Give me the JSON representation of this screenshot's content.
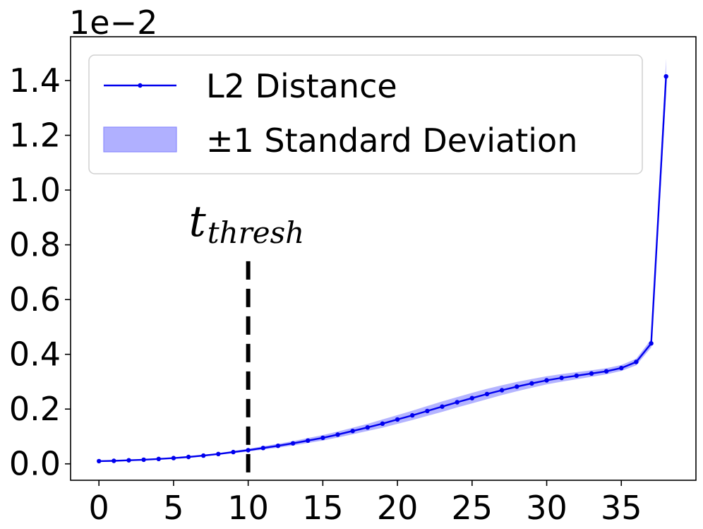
{
  "chart_data": {
    "type": "line",
    "title": "",
    "xlabel": "",
    "ylabel": "",
    "y_offset_label": "1e−2",
    "xlim": [
      -1.9,
      40
    ],
    "ylim": [
      -0.06,
      1.56
    ],
    "x_ticks": [
      0,
      5,
      10,
      15,
      20,
      25,
      30,
      35
    ],
    "y_ticks": [
      0.0,
      0.2,
      0.4,
      0.6,
      0.8,
      1.0,
      1.2,
      1.4
    ],
    "y_tick_labels": [
      "0.0",
      "0.2",
      "0.4",
      "0.6",
      "0.8",
      "1.0",
      "1.2",
      "1.4"
    ],
    "grid": false,
    "legend": {
      "placement": "upper-left",
      "entries": [
        "L2 Distance",
        "±1 Standard Deviation"
      ]
    },
    "series": [
      {
        "name": "L2 Distance",
        "color": "#0000ee",
        "x": [
          0,
          1,
          2,
          3,
          4,
          5,
          6,
          7,
          8,
          9,
          10,
          11,
          12,
          13,
          14,
          15,
          16,
          17,
          18,
          19,
          20,
          21,
          22,
          23,
          24,
          25,
          26,
          27,
          28,
          29,
          30,
          31,
          32,
          33,
          34,
          35,
          36,
          37,
          38
        ],
        "y": [
          0.01,
          0.011,
          0.013,
          0.015,
          0.018,
          0.021,
          0.025,
          0.03,
          0.036,
          0.043,
          0.05,
          0.058,
          0.066,
          0.075,
          0.085,
          0.095,
          0.107,
          0.12,
          0.133,
          0.147,
          0.162,
          0.177,
          0.193,
          0.209,
          0.225,
          0.24,
          0.255,
          0.269,
          0.282,
          0.294,
          0.305,
          0.314,
          0.322,
          0.33,
          0.338,
          0.35,
          0.372,
          0.44,
          1.415
        ],
        "std": [
          0.001,
          0.001,
          0.001,
          0.001,
          0.002,
          0.002,
          0.002,
          0.003,
          0.003,
          0.004,
          0.005,
          0.006,
          0.007,
          0.008,
          0.009,
          0.01,
          0.011,
          0.012,
          0.013,
          0.015,
          0.016,
          0.017,
          0.018,
          0.019,
          0.019,
          0.019,
          0.019,
          0.018,
          0.017,
          0.016,
          0.015,
          0.014,
          0.013,
          0.012,
          0.011,
          0.011,
          0.012,
          0.015,
          0.065
        ]
      }
    ],
    "band": {
      "name": "±1 Standard Deviation",
      "color": "#b0b0ff"
    },
    "annotation": {
      "x": 10,
      "line_style": "dashed",
      "line_color": "#000000",
      "y_from": -0.06,
      "y_to": 0.74,
      "label_main": "t",
      "label_sub": "thresh"
    }
  }
}
